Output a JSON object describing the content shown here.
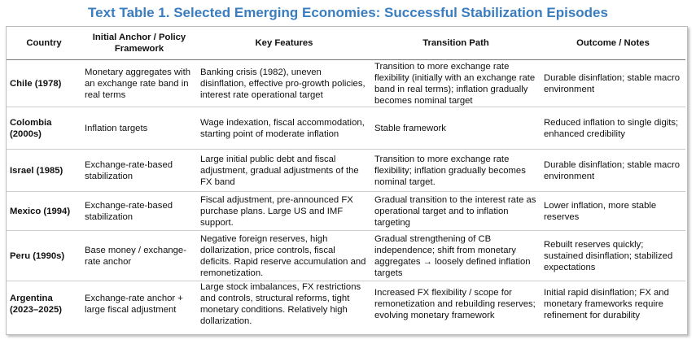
{
  "title": "Text Table 1. Selected Emerging Economies: Successful Stabilization Episodes",
  "table": {
    "headers": [
      "Country",
      "Initial Anchor / Policy Framework",
      "Key Features",
      "Transition Path",
      "Outcome / Notes"
    ],
    "rows": [
      [
        "Chile (1978)",
        "Monetary aggregates with an exchange rate band in real terms",
        "Banking crisis (1982), uneven disinflation, effective pro-growth policies, interest rate operational target",
        "Transition to more exchange rate flexibility (initially with an exchange rate band in real terms); inflation gradually becomes nominal target",
        "Durable disinflation; stable macro environment"
      ],
      [
        "Colombia (2000s)",
        "Inflation targets",
        "Wage indexation, fiscal accommodation, starting point of moderate inflation",
        "Stable framework",
        "Reduced inflation to single digits; enhanced credibility"
      ],
      [
        "Israel (1985)",
        "Exchange-rate-based stabilization",
        "Large initial public debt and fiscal adjustment, gradual adjustments of the FX band",
        "Transition to more exchange rate flexibility; inflation gradually becomes nominal target.",
        "Durable disinflation; stable macro environment"
      ],
      [
        "Mexico (1994)",
        "Exchange-rate-based stabilization",
        "Fiscal adjustment, pre-announced FX purchase plans. Large US and IMF support.",
        "Gradual transition to the interest rate as operational target and to inflation targeting",
        "Lower inflation, more stable reserves"
      ],
      [
        "Peru (1990s)",
        "Base money / exchange-rate anchor",
        "Negative foreign reserves, high dollarization, price controls, fiscal deficits. Rapid reserve accumulation and remonetization.",
        "Gradual strengthening of CB independence; shift from monetary aggregates → loosely defined inflation targets",
        "Rebuilt reserves quickly; sustained disinflation; stabilized expectations"
      ],
      [
        "Argentina (2023–2025)",
        "Exchange-rate anchor + large fiscal adjustment",
        "Large stock imbalances, FX restrictions and controls, structural reforms, tight monetary conditions. Relatively high dollarization.",
        "Increased FX flexibility / scope for remonetization and rebuilding reserves; evolving monetary framework",
        "Initial rapid disinflation; FX and monetary frameworks require refinement for durability"
      ]
    ]
  }
}
